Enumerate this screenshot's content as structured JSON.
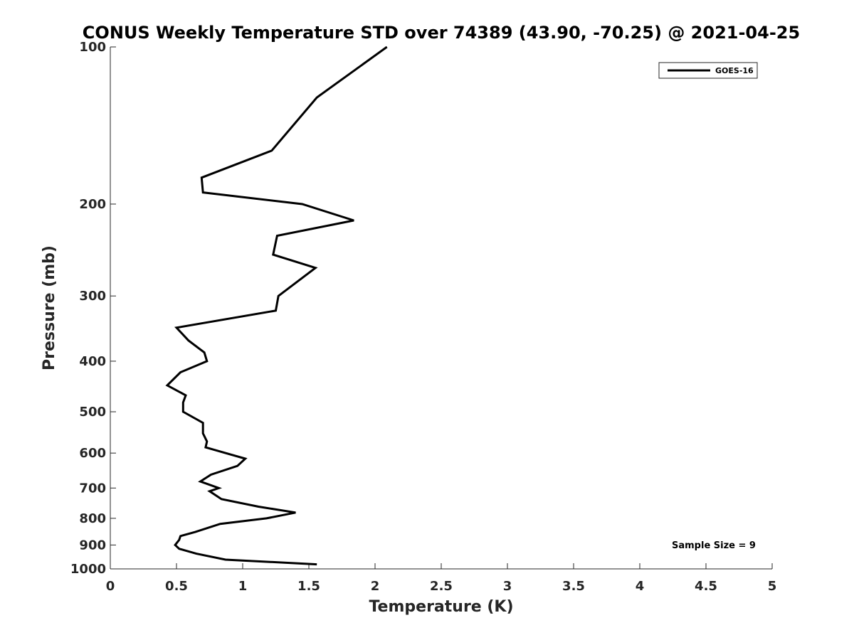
{
  "chart_data": {
    "type": "line",
    "title": "CONUS Weekly Temperature STD over 74389 (43.90, -70.25) @ 2021-04-25",
    "xlabel": "Temperature (K)",
    "ylabel": "Pressure (mb)",
    "xlim": [
      0,
      5
    ],
    "ylim": [
      100,
      1000
    ],
    "y_scale": "log",
    "y_reversed": true,
    "x_ticks": [
      0,
      0.5,
      1,
      1.5,
      2,
      2.5,
      3,
      3.5,
      4,
      4.5,
      5
    ],
    "x_tick_labels": [
      "0",
      "0.5",
      "1",
      "1.5",
      "2",
      "2.5",
      "3",
      "3.5",
      "4",
      "4.5",
      "5"
    ],
    "y_ticks": [
      100,
      200,
      300,
      400,
      500,
      600,
      700,
      800,
      900,
      1000
    ],
    "y_tick_labels": [
      "100",
      "200",
      "300",
      "400",
      "500",
      "600",
      "700",
      "800",
      "900",
      "1000"
    ],
    "grid": false,
    "legend_position": "top-right",
    "series": [
      {
        "name": "GOES-16",
        "color": "#000000",
        "points": [
          [
            2.09,
            100
          ],
          [
            1.56,
            125
          ],
          [
            1.22,
            158
          ],
          [
            0.69,
            178
          ],
          [
            0.7,
            190
          ],
          [
            1.45,
            200
          ],
          [
            1.84,
            215
          ],
          [
            1.26,
            230
          ],
          [
            1.23,
            250
          ],
          [
            1.55,
            265
          ],
          [
            1.27,
            300
          ],
          [
            1.25,
            320
          ],
          [
            0.5,
            345
          ],
          [
            0.59,
            365
          ],
          [
            0.71,
            385
          ],
          [
            0.73,
            400
          ],
          [
            0.53,
            420
          ],
          [
            0.43,
            445
          ],
          [
            0.57,
            465
          ],
          [
            0.55,
            480
          ],
          [
            0.55,
            500
          ],
          [
            0.7,
            525
          ],
          [
            0.7,
            550
          ],
          [
            0.73,
            570
          ],
          [
            0.72,
            585
          ],
          [
            1.02,
            615
          ],
          [
            0.96,
            635
          ],
          [
            0.76,
            660
          ],
          [
            0.68,
            680
          ],
          [
            0.82,
            700
          ],
          [
            0.75,
            710
          ],
          [
            0.84,
            735
          ],
          [
            1.12,
            760
          ],
          [
            1.4,
            780
          ],
          [
            1.18,
            800
          ],
          [
            0.83,
            820
          ],
          [
            0.64,
            850
          ],
          [
            0.53,
            865
          ],
          [
            0.52,
            880
          ],
          [
            0.49,
            900
          ],
          [
            0.52,
            915
          ],
          [
            0.65,
            935
          ],
          [
            0.87,
            960
          ],
          [
            1.56,
            980
          ]
        ]
      }
    ],
    "annotations": [
      "Sample Size = 9"
    ]
  }
}
